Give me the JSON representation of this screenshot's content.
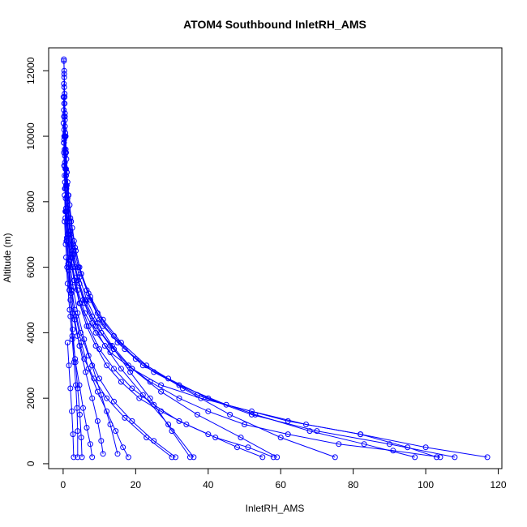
{
  "chart_data": {
    "type": "line",
    "title": "ATOM4 Southbound InletRH_AMS",
    "xlabel": "InletRH_AMS",
    "ylabel": "Altitude (m)",
    "xlim": [
      -4,
      121
    ],
    "ylim": [
      -150,
      12700
    ],
    "xticks": [
      0,
      20,
      40,
      60,
      80,
      100,
      120
    ],
    "yticks": [
      0,
      2000,
      4000,
      6000,
      8000,
      10000,
      12000
    ],
    "xtick_labels": [
      "0",
      "20",
      "40",
      "60",
      "80",
      "100",
      "120"
    ],
    "ytick_labels": [
      "0",
      "2000",
      "4000",
      "6000",
      "8000",
      "10000",
      "12000"
    ],
    "marker": "open-circle",
    "line_color": "#0000ff",
    "grid": false,
    "legend": "none",
    "series": [
      {
        "x": [
          0.2,
          0.3,
          0.3,
          0.4,
          0.5,
          0.5,
          0.6,
          0.8,
          1.0,
          1.2,
          1.5,
          2.0,
          2.6,
          3.4,
          4.5,
          6.0,
          8.0,
          10.5,
          14.0,
          18.5,
          24.0,
          30.0,
          35.0
        ],
        "y": [
          12350,
          12000,
          11500,
          11000,
          10500,
          10000,
          9500,
          9000,
          8500,
          8000,
          7500,
          7000,
          6500,
          6000,
          5500,
          5000,
          4500,
          4000,
          3500,
          2800,
          2000,
          1000,
          200
        ]
      },
      {
        "x": [
          0.2,
          0.3,
          0.4,
          0.5,
          0.7,
          0.9,
          1.2,
          1.8,
          2.5,
          3.5,
          5.0,
          7.5,
          11.0,
          16.0,
          23.0,
          33.0,
          46.0,
          60.0,
          75.0
        ],
        "y": [
          12300,
          11800,
          11200,
          10600,
          10000,
          9300,
          8600,
          7900,
          7200,
          6500,
          5800,
          5100,
          4400,
          3700,
          3000,
          2300,
          1500,
          800,
          200
        ]
      },
      {
        "x": [
          0.3,
          0.4,
          0.5,
          0.6,
          0.8,
          1.0,
          1.4,
          2.0,
          3.0,
          4.5,
          7.0,
          10.0,
          15.0,
          22.0,
          32.0,
          45.0,
          62.0,
          82.0,
          100.0,
          117.0
        ],
        "y": [
          11900,
          11300,
          10700,
          10100,
          9500,
          8900,
          8200,
          7500,
          6800,
          6000,
          5200,
          4400,
          3700,
          3000,
          2400,
          1800,
          1300,
          900,
          500,
          200
        ]
      },
      {
        "x": [
          0.2,
          0.3,
          0.5,
          0.7,
          1.0,
          1.5,
          2.2,
          3.3,
          5.0,
          7.5,
          11.0,
          17.0,
          25.0,
          37.0,
          52.0,
          70.0,
          90.0,
          108.0
        ],
        "y": [
          11600,
          11000,
          10300,
          9600,
          8900,
          8200,
          7400,
          6600,
          5800,
          5000,
          4200,
          3500,
          2800,
          2100,
          1500,
          1000,
          600,
          200
        ]
      },
      {
        "x": [
          0.1,
          0.2,
          0.3,
          0.5,
          0.8,
          1.2,
          1.8,
          2.8,
          4.2,
          6.5,
          9.5,
          14.0,
          20.0,
          29.0,
          40.0,
          53.0,
          68.0,
          83.0,
          97.0
        ],
        "y": [
          11200,
          10600,
          10000,
          9400,
          8800,
          8100,
          7400,
          6700,
          6000,
          5300,
          4600,
          3900,
          3200,
          2600,
          2000,
          1500,
          1000,
          600,
          200
        ]
      },
      {
        "x": [
          0.2,
          0.3,
          0.4,
          0.6,
          0.9,
          1.3,
          2.0,
          3.0,
          4.5,
          6.5,
          9.5,
          13.5,
          19.0,
          27.0,
          37.0,
          49.0,
          59.0
        ],
        "y": [
          10800,
          10200,
          9600,
          9000,
          8400,
          7800,
          7100,
          6400,
          5700,
          5000,
          4300,
          3600,
          2900,
          2200,
          1500,
          800,
          200
        ]
      },
      {
        "x": [
          0.1,
          0.2,
          0.4,
          0.6,
          1.0,
          1.6,
          2.5,
          4.0,
          6.0,
          9.0,
          13.0,
          18.0,
          24.0,
          32.0,
          40.0,
          50.0,
          62.0,
          76.0,
          91.0,
          104.0
        ],
        "y": [
          10400,
          9800,
          9100,
          8400,
          7700,
          7000,
          6300,
          5600,
          4900,
          4200,
          3600,
          3000,
          2500,
          2000,
          1600,
          1200,
          900,
          600,
          400,
          200
        ]
      },
      {
        "x": [
          0.3,
          0.5,
          0.8,
          1.2,
          1.8,
          2.6,
          3.8,
          5.5,
          8.0,
          11.5,
          16.0,
          22.0,
          29.0,
          36.0
        ],
        "y": [
          9900,
          9200,
          8500,
          7800,
          7100,
          6400,
          5700,
          5000,
          4300,
          3600,
          2900,
          2100,
          1200,
          200
        ]
      },
      {
        "x": [
          0.2,
          0.4,
          0.7,
          1.1,
          1.7,
          2.6,
          4.0,
          6.0,
          9.0,
          13.0,
          19.0,
          27.0,
          38.0,
          52.0,
          67.0,
          82.0,
          95.0,
          103.0
        ],
        "y": [
          9500,
          8800,
          8100,
          7400,
          6700,
          6000,
          5300,
          4600,
          4000,
          3400,
          2900,
          2400,
          2000,
          1600,
          1200,
          900,
          500,
          200
        ]
      },
      {
        "x": [
          0.5,
          0.8,
          1.2,
          1.8,
          2.7,
          4.0,
          5.8,
          8.0,
          10.5,
          13.0,
          15.0
        ],
        "y": [
          8600,
          7800,
          7000,
          6200,
          5400,
          4600,
          3800,
          3000,
          2100,
          1200,
          300
        ]
      },
      {
        "x": [
          0.4,
          0.6,
          0.9,
          1.4,
          2.1,
          3.2,
          4.8,
          7.0,
          10.0,
          14.0,
          19.0,
          25.0,
          31.0
        ],
        "y": [
          8200,
          7500,
          6800,
          6100,
          5400,
          4700,
          4000,
          3300,
          2600,
          1900,
          1300,
          700,
          200
        ]
      },
      {
        "x": [
          0.6,
          1.0,
          1.6,
          2.4,
          3.5,
          5.0,
          7.0,
          9.5,
          12.0,
          14.5,
          16.5,
          18.0
        ],
        "y": [
          7700,
          6900,
          6100,
          5300,
          4500,
          3700,
          2900,
          2200,
          1600,
          1000,
          500,
          200
        ]
      },
      {
        "x": [
          0.3,
          0.5,
          0.8,
          1.3,
          2.0,
          3.0,
          4.5,
          6.5,
          9.0,
          12.0,
          16.0,
          21.0,
          27.0,
          34.0,
          42.0,
          51.0,
          58.0
        ],
        "y": [
          9100,
          8400,
          7700,
          7000,
          6300,
          5600,
          4900,
          4200,
          3600,
          3000,
          2500,
          2000,
          1600,
          1200,
          800,
          500,
          200
        ]
      },
      {
        "x": [
          1.0,
          1.5,
          2.2,
          3.2,
          4.5,
          6.2,
          8.0,
          9.5,
          10.5,
          11.0
        ],
        "y": [
          6800,
          6000,
          5200,
          4400,
          3600,
          2800,
          2000,
          1300,
          700,
          300
        ]
      },
      {
        "x": [
          0.8,
          1.2,
          1.8,
          2.5,
          3.4,
          4.5,
          5.5,
          6.5,
          7.5,
          8.0
        ],
        "y": [
          6300,
          5500,
          4700,
          3900,
          3100,
          2400,
          1700,
          1100,
          600,
          200
        ]
      },
      {
        "x": [
          0.2,
          0.3,
          0.5,
          0.8,
          1.3,
          2.0,
          3.1,
          4.7,
          7.0,
          10.0,
          14.0,
          19.0,
          25.0,
          32.0,
          40.0,
          48.0,
          55.0
        ],
        "y": [
          9800,
          9100,
          8400,
          7700,
          7000,
          6300,
          5600,
          4900,
          4200,
          3500,
          2900,
          2300,
          1800,
          1300,
          900,
          500,
          200
        ]
      },
      {
        "x": [
          1.5,
          2.0,
          2.6,
          3.3,
          4.0,
          4.6,
          5.0,
          5.2
        ],
        "y": [
          5900,
          5000,
          4100,
          3200,
          2300,
          1500,
          800,
          200
        ]
      },
      {
        "x": [
          0.4,
          0.7,
          1.1,
          1.7,
          2.6,
          3.9,
          5.8,
          8.5,
          12.0,
          17.0,
          23.0,
          30.0
        ],
        "y": [
          7400,
          6700,
          6000,
          5300,
          4600,
          3900,
          3200,
          2600,
          2000,
          1400,
          800,
          200
        ]
      },
      {
        "x": [
          2.0,
          2.5,
          3.0,
          3.5,
          3.8,
          4.0,
          4.0
        ],
        "y": [
          4500,
          3800,
          3100,
          2400,
          1700,
          1000,
          200
        ]
      },
      {
        "x": [
          1.2,
          1.6,
          2.0,
          2.4,
          2.7,
          2.9
        ],
        "y": [
          3700,
          3000,
          2300,
          1600,
          900,
          200
        ]
      }
    ]
  }
}
